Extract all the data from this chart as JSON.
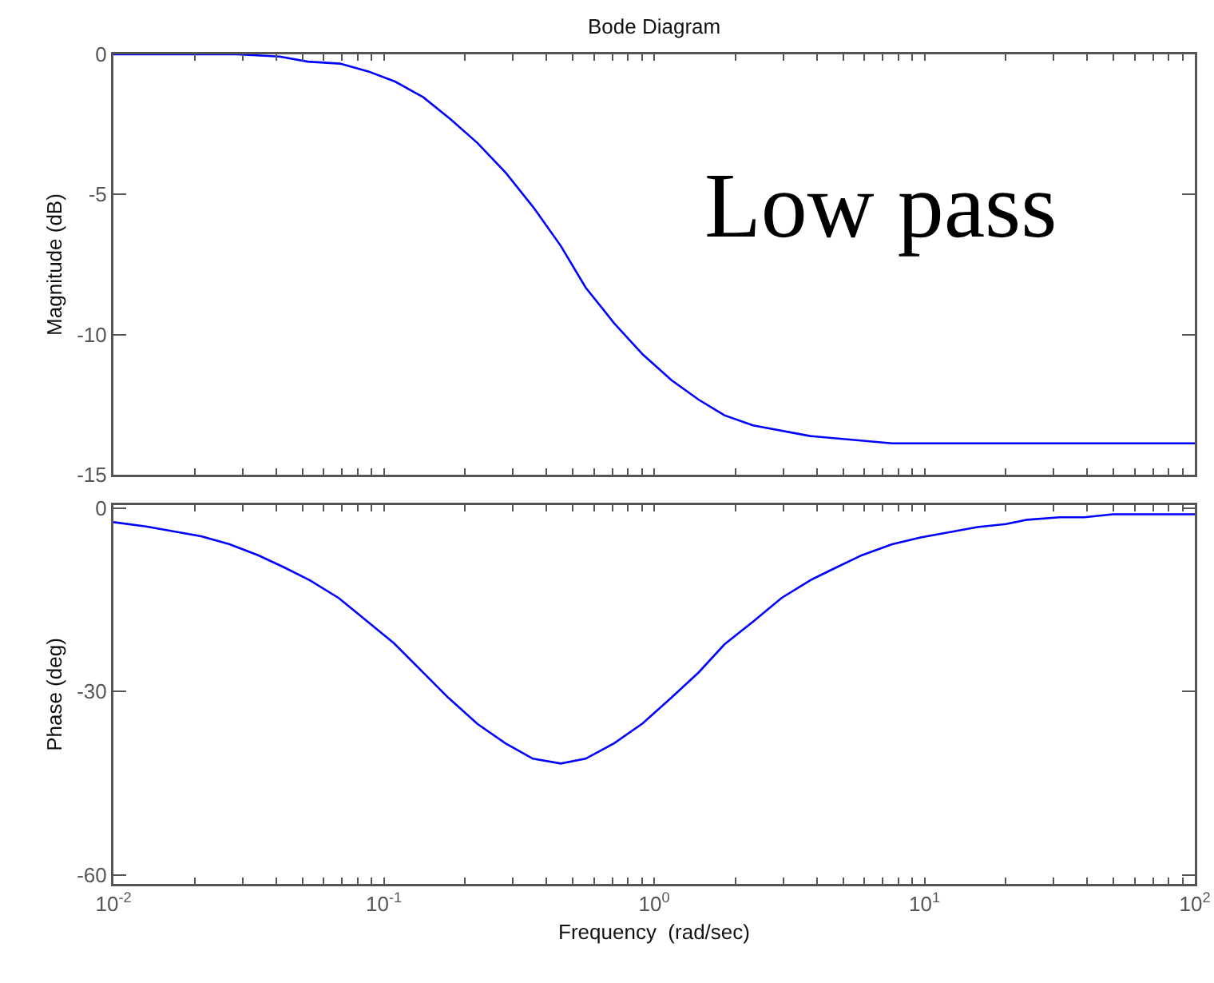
{
  "chart_data": [
    {
      "type": "line",
      "title": "Bode Diagram",
      "ylabel": "Magnitude (dB)",
      "log": "x",
      "grid": false,
      "legend": false,
      "tick_labels": "y",
      "marker": "none",
      "line_style": "solid",
      "annotations": [
        "Low pass"
      ],
      "xlim": [
        0.01,
        100
      ],
      "ylim": [
        -15,
        0
      ],
      "yticks": [
        0,
        -5,
        -10,
        -15
      ],
      "xticks": [
        {
          "value": 0.01,
          "label": null
        },
        {
          "value": 0.02,
          "label": null
        },
        {
          "value": 0.03,
          "label": null
        },
        {
          "value": 0.04,
          "label": null
        },
        {
          "value": 0.05,
          "label": null
        },
        {
          "value": 0.06,
          "label": null
        },
        {
          "value": 0.07,
          "label": null
        },
        {
          "value": 0.08,
          "label": null
        },
        {
          "value": 0.09,
          "label": null
        },
        {
          "value": 0.1,
          "label": null
        },
        {
          "value": 0.2,
          "label": null
        },
        {
          "value": 0.3,
          "label": null
        },
        {
          "value": 0.4,
          "label": null
        },
        {
          "value": 0.5,
          "label": null
        },
        {
          "value": 0.6,
          "label": null
        },
        {
          "value": 0.7,
          "label": null
        },
        {
          "value": 0.8,
          "label": null
        },
        {
          "value": 0.9,
          "label": null
        },
        {
          "value": 1,
          "label": null
        },
        {
          "value": 2,
          "label": null
        },
        {
          "value": 3,
          "label": null
        },
        {
          "value": 4,
          "label": null
        },
        {
          "value": 5,
          "label": null
        },
        {
          "value": 6,
          "label": null
        },
        {
          "value": 7,
          "label": null
        },
        {
          "value": 8,
          "label": null
        },
        {
          "value": 9,
          "label": null
        },
        {
          "value": 10,
          "label": null
        },
        {
          "value": 20,
          "label": null
        },
        {
          "value": 30,
          "label": null
        },
        {
          "value": 40,
          "label": null
        },
        {
          "value": 50,
          "label": null
        },
        {
          "value": 60,
          "label": null
        },
        {
          "value": 70,
          "label": null
        },
        {
          "value": 80,
          "label": null
        },
        {
          "value": 90,
          "label": null
        },
        {
          "value": 100,
          "label": null
        }
      ],
      "series": [
        {
          "color": "#0000ff",
          "x": [
            0.01,
            0.0286,
            0.0411,
            0.0524,
            0.0689,
            0.0877,
            0.11,
            0.14,
            0.176,
            0.222,
            0.283,
            0.361,
            0.452,
            0.558,
            0.711,
            0.908,
            1.16,
            1.46,
            1.82,
            2.32,
            3.78,
            7.59,
            100
          ],
          "values": [
            0,
            0,
            -0.08,
            -0.26,
            -0.33,
            -0.61,
            -0.97,
            -1.53,
            -2.3,
            -3.16,
            -4.23,
            -5.51,
            -6.84,
            -8.32,
            -9.59,
            -10.71,
            -11.63,
            -12.32,
            -12.88,
            -13.24,
            -13.62,
            -13.88,
            -13.88
          ]
        }
      ]
    },
    {
      "type": "line",
      "xlabel": "Frequency  (rad/sec)",
      "ylabel": "Phase (deg)",
      "log": "x",
      "grid": false,
      "legend": false,
      "marker": "none",
      "line_style": "solid",
      "xlim": [
        0.01,
        100
      ],
      "ylim": [
        -61.5,
        0.5
      ],
      "yticks": [
        0,
        -30,
        -60
      ],
      "xticks": [
        {
          "value": 0.01,
          "label": "10$^{-2}$"
        },
        {
          "value": 0.02,
          "label": null
        },
        {
          "value": 0.03,
          "label": null
        },
        {
          "value": 0.04,
          "label": null
        },
        {
          "value": 0.05,
          "label": null
        },
        {
          "value": 0.06,
          "label": null
        },
        {
          "value": 0.07,
          "label": null
        },
        {
          "value": 0.08,
          "label": null
        },
        {
          "value": 0.09,
          "label": null
        },
        {
          "value": 0.1,
          "label": "10$^{-1}$"
        },
        {
          "value": 0.2,
          "label": null
        },
        {
          "value": 0.3,
          "label": null
        },
        {
          "value": 0.4,
          "label": null
        },
        {
          "value": 0.5,
          "label": null
        },
        {
          "value": 0.6,
          "label": null
        },
        {
          "value": 0.7,
          "label": null
        },
        {
          "value": 0.8,
          "label": null
        },
        {
          "value": 0.9,
          "label": null
        },
        {
          "value": 1,
          "label": "10$^{0}$"
        },
        {
          "value": 2,
          "label": null
        },
        {
          "value": 3,
          "label": null
        },
        {
          "value": 4,
          "label": null
        },
        {
          "value": 5,
          "label": null
        },
        {
          "value": 6,
          "label": null
        },
        {
          "value": 7,
          "label": null
        },
        {
          "value": 8,
          "label": null
        },
        {
          "value": 9,
          "label": null
        },
        {
          "value": 10,
          "label": "10$^{1}$"
        },
        {
          "value": 20,
          "label": null
        },
        {
          "value": 30,
          "label": null
        },
        {
          "value": 40,
          "label": null
        },
        {
          "value": 50,
          "label": null
        },
        {
          "value": 60,
          "label": null
        },
        {
          "value": 70,
          "label": null
        },
        {
          "value": 80,
          "label": null
        },
        {
          "value": 90,
          "label": null
        },
        {
          "value": 100,
          "label": "10$^{2}$"
        }
      ],
      "series": [
        {
          "color": "#0000ff",
          "x": [
            0.01,
            0.0132,
            0.0211,
            0.0269,
            0.0343,
            0.0424,
            0.0533,
            0.0681,
            0.109,
            0.173,
            0.222,
            0.282,
            0.356,
            0.452,
            0.558,
            0.711,
            0.908,
            1.16,
            1.46,
            1.82,
            2.32,
            2.96,
            3.78,
            4.67,
            5.87,
            7.59,
            9.68,
            15.7,
            20.0,
            24.0,
            31.6,
            39.0,
            49.8,
            100
          ],
          "values": [
            -2.3,
            -3.0,
            -4.6,
            -5.9,
            -7.7,
            -9.6,
            -11.8,
            -14.7,
            -22.1,
            -31.0,
            -35.3,
            -38.5,
            -41.0,
            -41.8,
            -41.0,
            -38.5,
            -35.2,
            -31.0,
            -26.9,
            -22.3,
            -18.6,
            -14.7,
            -11.8,
            -9.8,
            -7.7,
            -5.9,
            -4.8,
            -3.1,
            -2.6,
            -1.9,
            -1.5,
            -1.5,
            -1.0,
            -1.0
          ]
        }
      ]
    }
  ]
}
